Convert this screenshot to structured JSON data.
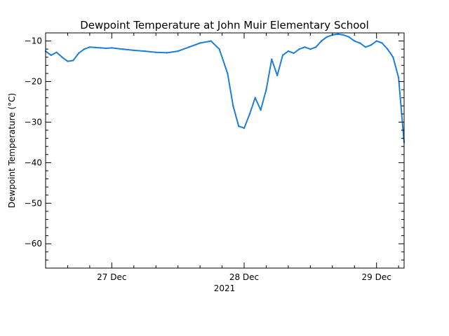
{
  "chart_data": {
    "type": "line",
    "title": "Dewpoint Temperature at John Muir Elementary School",
    "ylabel": "Dewpoint Temperature (°C)",
    "xlabel": "2021",
    "xlim": [
      "2021-12-26T12:00",
      "2021-12-29T05:00"
    ],
    "ylim": [
      -66,
      -8
    ],
    "y_ticks": [
      -10,
      -20,
      -30,
      -40,
      -50,
      -60
    ],
    "y_tick_labels": [
      "−10",
      "−20",
      "−30",
      "−40",
      "−50",
      "−60"
    ],
    "x_ticks": [
      "2021-12-27T00:00",
      "2021-12-28T00:00",
      "2021-12-29T00:00"
    ],
    "x_tick_labels": [
      "27 Dec",
      "28 Dec",
      "29 Dec"
    ],
    "grid": false,
    "line_color": "#1f7fd8",
    "series": [
      {
        "x": [
          "2021-12-26T12:00",
          "2021-12-26T13:00",
          "2021-12-26T14:00",
          "2021-12-26T15:00",
          "2021-12-26T16:00",
          "2021-12-26T17:00",
          "2021-12-26T18:00",
          "2021-12-26T19:00",
          "2021-12-26T20:00",
          "2021-12-26T21:00",
          "2021-12-26T22:00",
          "2021-12-26T23:00",
          "2021-12-27T00:00",
          "2021-12-27T02:00",
          "2021-12-27T04:00",
          "2021-12-27T06:00",
          "2021-12-27T08:00",
          "2021-12-27T10:00",
          "2021-12-27T12:00",
          "2021-12-27T14:00",
          "2021-12-27T16:00",
          "2021-12-27T18:00",
          "2021-12-27T19:30",
          "2021-12-27T21:00",
          "2021-12-27T22:00",
          "2021-12-27T23:00",
          "2021-12-28T00:00",
          "2021-12-28T01:00",
          "2021-12-28T02:00",
          "2021-12-28T03:00",
          "2021-12-28T04:00",
          "2021-12-28T05:00",
          "2021-12-28T06:00",
          "2021-12-28T07:00",
          "2021-12-28T08:00",
          "2021-12-28T09:00",
          "2021-12-28T10:00",
          "2021-12-28T11:00",
          "2021-12-28T12:00",
          "2021-12-28T13:00",
          "2021-12-28T14:00",
          "2021-12-28T15:00",
          "2021-12-28T16:00",
          "2021-12-28T17:00",
          "2021-12-28T18:00",
          "2021-12-28T19:00",
          "2021-12-28T20:00",
          "2021-12-28T21:00",
          "2021-12-28T22:00",
          "2021-12-28T23:00",
          "2021-12-29T00:00",
          "2021-12-29T01:00",
          "2021-12-29T02:00",
          "2021-12-29T03:00",
          "2021-12-29T04:00",
          "2021-12-29T05:00"
        ],
        "values": [
          -12.5,
          -13.5,
          -12.8,
          -14.0,
          -15.0,
          -14.8,
          -13.0,
          -12.0,
          -11.5,
          -11.6,
          -11.7,
          -11.8,
          -11.7,
          -12.0,
          -12.3,
          -12.5,
          -12.8,
          -12.9,
          -12.5,
          -11.5,
          -10.5,
          -10.0,
          -12.0,
          -18.0,
          -26.0,
          -31.0,
          -31.5,
          -28.0,
          -24.0,
          -27.0,
          -22.0,
          -14.5,
          -18.5,
          -13.5,
          -12.5,
          -13.0,
          -12.0,
          -11.5,
          -12.0,
          -11.5,
          -10.0,
          -9.0,
          -8.5,
          -8.3,
          -8.5,
          -9.0,
          -10.0,
          -10.5,
          -11.5,
          -11.0,
          -10.0,
          -10.5,
          -12.0,
          -14.0,
          -19.0,
          -35.0
        ]
      }
    ]
  }
}
